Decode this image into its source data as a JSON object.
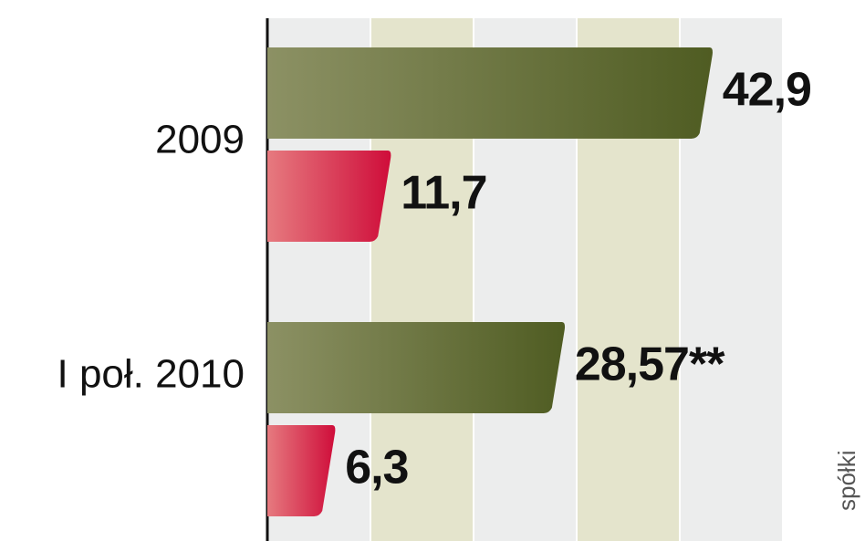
{
  "chart_data": {
    "type": "bar",
    "orientation": "horizontal",
    "categories": [
      "2009",
      "I poł. 2010"
    ],
    "series": [
      {
        "color": "#5c6a2c",
        "values": [
          42.9,
          28.57
        ],
        "value_labels": [
          "42,9",
          "28,57**"
        ]
      },
      {
        "color": "#d4163f",
        "values": [
          11.7,
          6.3
        ],
        "value_labels": [
          "11,7",
          "6,3"
        ]
      }
    ],
    "xlim": [
      0,
      50
    ],
    "xticks": [
      0,
      10,
      20,
      30,
      40,
      50
    ],
    "grid": true,
    "source_note": "spółki"
  }
}
